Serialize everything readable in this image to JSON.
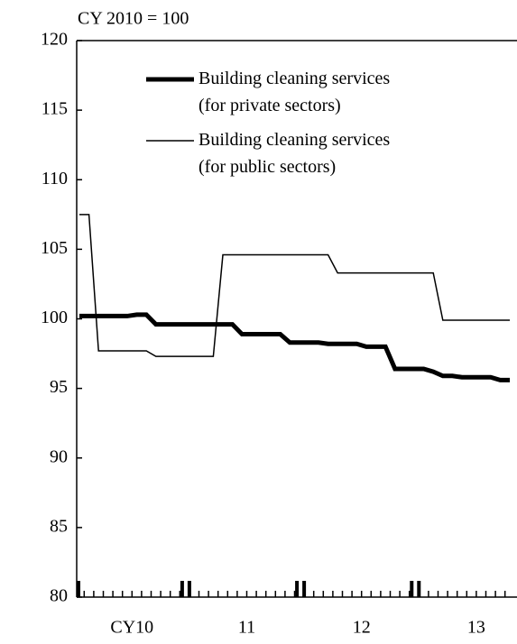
{
  "chart_data": {
    "type": "line",
    "y_label": "CY 2010 = 100",
    "categories": [
      null,
      null,
      null,
      null,
      null,
      "CY10",
      null,
      null,
      null,
      null,
      null,
      null,
      null,
      null,
      null,
      null,
      null,
      "11",
      null,
      null,
      null,
      null,
      null,
      null,
      null,
      null,
      null,
      null,
      null,
      "12",
      null,
      null,
      null,
      null,
      null,
      null,
      null,
      null,
      null,
      null,
      null,
      "13",
      null,
      null,
      null,
      null
    ],
    "series": [
      {
        "name": "Building cleaning services (for private sectors)",
        "color": "#000000",
        "line_width": 5,
        "values": [
          100.2,
          100.2,
          100.2,
          100.2,
          100.2,
          100.2,
          100.3,
          100.3,
          99.6,
          99.6,
          99.6,
          99.6,
          99.6,
          99.6,
          99.6,
          99.6,
          99.6,
          98.9,
          98.9,
          98.9,
          98.9,
          98.9,
          98.3,
          98.3,
          98.3,
          98.3,
          98.2,
          98.2,
          98.2,
          98.2,
          98.0,
          98.0,
          98.0,
          96.4,
          96.4,
          96.4,
          96.4,
          96.2,
          95.9,
          95.9,
          95.8,
          95.8,
          95.8,
          95.8,
          95.6,
          95.6
        ]
      },
      {
        "name": "Building cleaning services (for public sectors)",
        "color": "#000000",
        "line_width": 1.5,
        "values": [
          107.5,
          107.5,
          97.7,
          97.7,
          97.7,
          97.7,
          97.7,
          97.7,
          97.3,
          97.3,
          97.3,
          97.3,
          97.3,
          97.3,
          97.3,
          104.6,
          104.6,
          104.6,
          104.6,
          104.6,
          104.6,
          104.6,
          104.6,
          104.6,
          104.6,
          104.6,
          104.6,
          103.3,
          103.3,
          103.3,
          103.3,
          103.3,
          103.3,
          103.3,
          103.3,
          103.3,
          103.3,
          103.3,
          99.9,
          99.9,
          99.9,
          99.9,
          99.9,
          99.9,
          99.9,
          99.9
        ]
      }
    ],
    "ylim": [
      80,
      120
    ],
    "yticks": [
      80,
      85,
      90,
      95,
      100,
      105,
      110,
      115,
      120
    ],
    "months_per_year": 12
  }
}
